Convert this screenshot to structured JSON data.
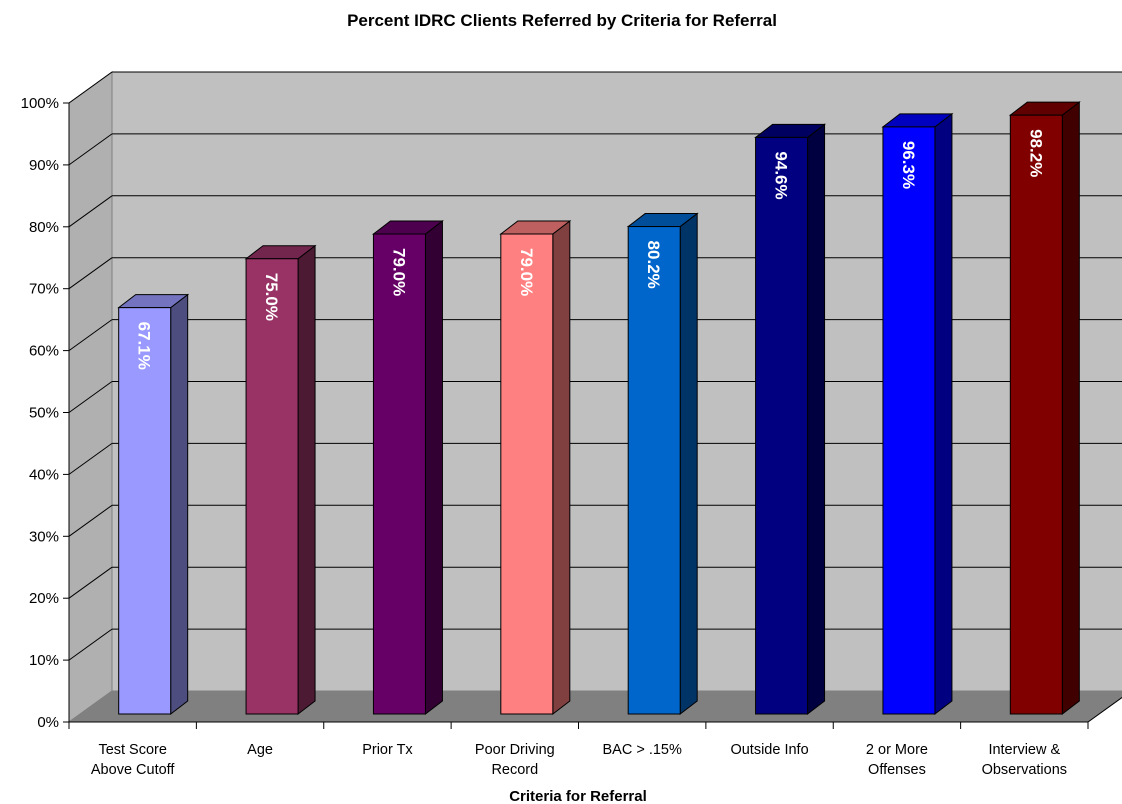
{
  "chart_data": {
    "type": "bar",
    "title": "Percent IDRC Clients Referred by Criteria for Referral",
    "xlabel": "Criteria for Referral",
    "ylabel": "",
    "ylim": [
      0,
      100
    ],
    "yticks": [
      "0%",
      "10%",
      "20%",
      "30%",
      "40%",
      "50%",
      "60%",
      "70%",
      "80%",
      "90%",
      "100%"
    ],
    "grid": true,
    "style": "3d-column",
    "categories": [
      [
        "Test Score",
        "Above Cutoff"
      ],
      [
        "Age"
      ],
      [
        "Prior Tx"
      ],
      [
        "Poor Driving",
        "Record"
      ],
      [
        "BAC > .15%"
      ],
      [
        "Outside Info"
      ],
      [
        "2 or More",
        "Offenses"
      ],
      [
        "Interview &",
        "Observations"
      ]
    ],
    "values": [
      67.1,
      75.0,
      79.0,
      79.0,
      80.2,
      94.6,
      96.3,
      98.2
    ],
    "data_labels": [
      "67.1%",
      "75.0%",
      "79.0%",
      "79.0%",
      "80.2%",
      "94.6%",
      "96.3%",
      "98.2%"
    ],
    "colors": [
      "#9999FF",
      "#993366",
      "#660066",
      "#FF8080",
      "#0066CC",
      "#000080",
      "#0000FF",
      "#800000"
    ]
  }
}
